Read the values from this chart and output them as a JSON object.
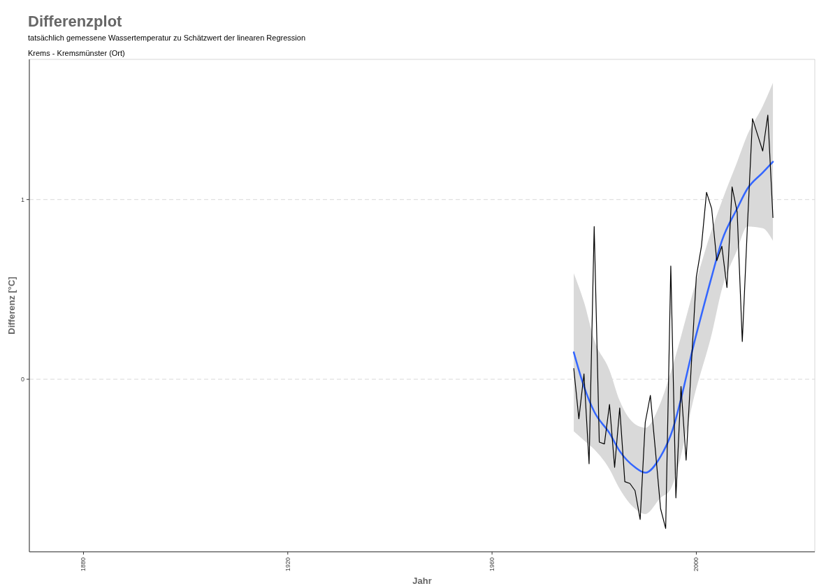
{
  "chart_data": {
    "type": "line",
    "title": "Differenzplot",
    "subtitle": "tatsächlich gemessene Wassertemperatur zu Schätzwert der linearen Regression",
    "annotations": [
      "Krems - Kremsmünster (Ort)"
    ],
    "xlabel": "Jahr",
    "ylabel": "Differenz [°C]",
    "xlim": [
      1869.4,
      2023.2
    ],
    "ylim": [
      -0.96,
      1.78
    ],
    "xticks": [
      1880,
      1920,
      1960,
      2000
    ],
    "yticks": [
      0,
      1
    ],
    "grid": "y",
    "series": [
      {
        "color": "#000000",
        "x": [
          1976,
          1977,
          1978,
          1979,
          1980,
          1981,
          1982,
          1983,
          1984,
          1985,
          1986,
          1987,
          1988,
          1989,
          1990,
          1991,
          1992,
          1993,
          1994,
          1995,
          1996,
          1997,
          1998,
          1999,
          2000,
          2001,
          2002,
          2003,
          2004,
          2005,
          2006,
          2007,
          2008,
          2009,
          2010,
          2011,
          2012,
          2013,
          2014,
          2015
        ],
        "values": [
          0.06,
          -0.22,
          0.03,
          -0.47,
          0.85,
          -0.35,
          -0.36,
          -0.14,
          -0.49,
          -0.16,
          -0.57,
          -0.58,
          -0.62,
          -0.78,
          -0.24,
          -0.09,
          -0.4,
          -0.72,
          -0.83,
          0.63,
          -0.66,
          -0.04,
          -0.45,
          0.07,
          0.57,
          0.74,
          1.04,
          0.95,
          0.66,
          0.74,
          0.51,
          1.07,
          0.93,
          0.21,
          0.85,
          1.45,
          1.36,
          1.27,
          1.47,
          0.9
        ]
      },
      {
        "color": "#3366ff",
        "x": [
          1976,
          1978,
          1980,
          1983,
          1985,
          1988,
          1990,
          1993,
          1995,
          2000,
          2003,
          2005,
          2008,
          2010,
          2013,
          2015
        ],
        "values": [
          0.15,
          -0.04,
          -0.18,
          -0.3,
          -0.4,
          -0.49,
          -0.52,
          -0.43,
          -0.31,
          0.25,
          0.57,
          0.77,
          0.95,
          1.06,
          1.15,
          1.21
        ],
        "lower": [
          -0.29,
          -0.34,
          -0.39,
          -0.5,
          -0.61,
          -0.72,
          -0.75,
          -0.66,
          -0.61,
          -0.05,
          0.25,
          0.5,
          0.72,
          0.85,
          0.84,
          0.77
        ],
        "upper": [
          0.59,
          0.43,
          0.22,
          0.05,
          -0.12,
          -0.25,
          -0.27,
          -0.13,
          0.04,
          0.55,
          0.83,
          0.99,
          1.21,
          1.36,
          1.52,
          1.65
        ]
      }
    ]
  }
}
